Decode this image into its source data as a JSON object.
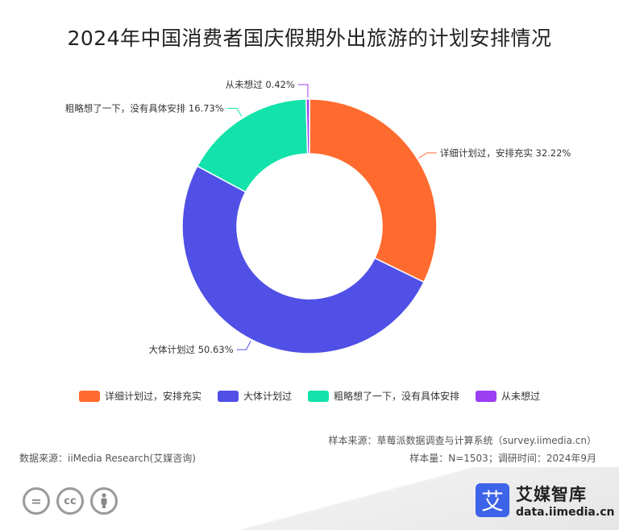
{
  "title": "2024年中国消费者国庆假期外出旅游的计划安排情况",
  "chart_data": {
    "type": "pie",
    "donut": true,
    "labels": [
      "详细计划过，安排充实",
      "大体计划过",
      "粗略想了一下，没有具体安排",
      "从未想过"
    ],
    "values": [
      32.22,
      50.63,
      16.73,
      0.42
    ],
    "unit": "%",
    "colors": [
      "#ff6b2f",
      "#5050e6",
      "#13e2aa",
      "#9b3ff2"
    ],
    "data_labels": [
      "详细计划过，安排充实 32.22%",
      "大体计划过 50.63%",
      "粗略想了一下，没有具体安排 16.73%",
      "从未想过 0.42%"
    ],
    "legend_position": "bottom"
  },
  "legend": [
    {
      "label": "详细计划过，安排充实",
      "color": "#ff6b2f"
    },
    {
      "label": "大体计划过",
      "color": "#5050e6"
    },
    {
      "label": "粗略想了一下，没有具体安排",
      "color": "#13e2aa"
    },
    {
      "label": "从未想过",
      "color": "#9b3ff2"
    }
  ],
  "meta": {
    "sample_source": "样本来源：草莓派数据调查与计算系统（survey.iimedia.cn）",
    "data_source": "数据来源：iiMedia Research(艾媒咨询)",
    "sample_size": "样本量：N=1503；调研时间：2024年9月"
  },
  "brand": {
    "badge": "艾",
    "name_cn": "艾媒智库",
    "name_en": "data.iimedia.cn"
  },
  "license_icons": [
    "=",
    "cc",
    "person"
  ]
}
